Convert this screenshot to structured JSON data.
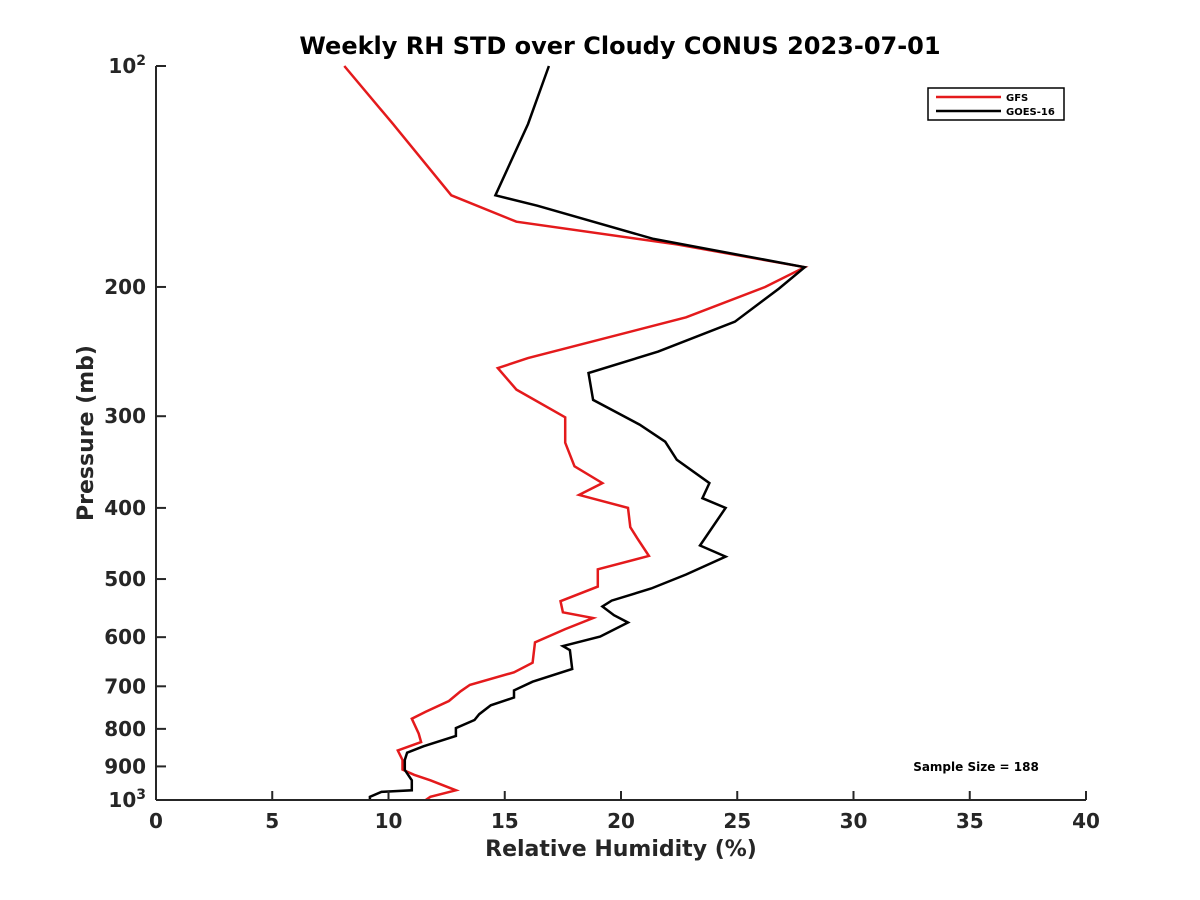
{
  "chart_data": {
    "type": "line",
    "title": "Weekly RH STD over Cloudy CONUS 2023-07-01",
    "xlabel": "Relative Humidity (%)",
    "ylabel": "Pressure (mb)",
    "xlim": [
      0,
      40
    ],
    "ylim": [
      1000,
      100
    ],
    "y_scale": "log",
    "grid": false,
    "legend_position": "top-right",
    "annotation": "Sample Size = 188",
    "x_ticks": [
      0,
      5,
      10,
      15,
      20,
      25,
      30,
      35,
      40
    ],
    "y_ticks": [
      {
        "value": 100,
        "label": "10",
        "sup": "2"
      },
      {
        "value": 200,
        "label": "200",
        "sup": ""
      },
      {
        "value": 300,
        "label": "300",
        "sup": ""
      },
      {
        "value": 400,
        "label": "400",
        "sup": ""
      },
      {
        "value": 500,
        "label": "500",
        "sup": ""
      },
      {
        "value": 600,
        "label": "600",
        "sup": ""
      },
      {
        "value": 700,
        "label": "700",
        "sup": ""
      },
      {
        "value": 800,
        "label": "800",
        "sup": ""
      },
      {
        "value": 900,
        "label": "900",
        "sup": ""
      },
      {
        "value": 1000,
        "label": "10",
        "sup": "3"
      }
    ],
    "series": [
      {
        "name": "GFS",
        "color": "#e41a1c",
        "points": [
          [
            8.1,
            100
          ],
          [
            10.2,
            120
          ],
          [
            12.7,
            150
          ],
          [
            15.5,
            163
          ],
          [
            22.4,
            175
          ],
          [
            27.9,
            188
          ],
          [
            26.2,
            200
          ],
          [
            22.8,
            220
          ],
          [
            16.0,
            250
          ],
          [
            14.7,
            258
          ],
          [
            15.5,
            276
          ],
          [
            17.6,
            301
          ],
          [
            17.6,
            326
          ],
          [
            18.0,
            351
          ],
          [
            19.2,
            370
          ],
          [
            18.2,
            384
          ],
          [
            20.3,
            400
          ],
          [
            20.4,
            425
          ],
          [
            20.7,
            440
          ],
          [
            21.2,
            465
          ],
          [
            19.0,
            485
          ],
          [
            19.0,
            512
          ],
          [
            17.4,
            536
          ],
          [
            17.5,
            555
          ],
          [
            18.8,
            565
          ],
          [
            17.6,
            585
          ],
          [
            16.3,
            610
          ],
          [
            16.2,
            650
          ],
          [
            15.4,
            670
          ],
          [
            13.5,
            697
          ],
          [
            13.1,
            711
          ],
          [
            12.6,
            733
          ],
          [
            11.6,
            758
          ],
          [
            11.0,
            775
          ],
          [
            11.3,
            812
          ],
          [
            11.4,
            834
          ],
          [
            10.4,
            856
          ],
          [
            10.6,
            882
          ],
          [
            10.6,
            909
          ],
          [
            11.1,
            924
          ],
          [
            11.8,
            940
          ],
          [
            12.9,
            970
          ],
          [
            11.8,
            990
          ],
          [
            11.6,
            1000
          ]
        ]
      },
      {
        "name": "GOES-16",
        "color": "#000000",
        "points": [
          [
            16.9,
            100
          ],
          [
            16.0,
            120
          ],
          [
            14.6,
            150
          ],
          [
            16.4,
            155
          ],
          [
            21.4,
            172
          ],
          [
            27.9,
            188
          ],
          [
            26.8,
            201
          ],
          [
            24.9,
            223
          ],
          [
            21.6,
            245
          ],
          [
            18.6,
            262
          ],
          [
            18.8,
            285
          ],
          [
            20.8,
            308
          ],
          [
            21.9,
            325
          ],
          [
            22.4,
            344
          ],
          [
            23.8,
            370
          ],
          [
            23.5,
            388
          ],
          [
            24.5,
            400
          ],
          [
            23.4,
            450
          ],
          [
            24.5,
            466
          ],
          [
            22.8,
            493
          ],
          [
            21.3,
            515
          ],
          [
            19.6,
            535
          ],
          [
            19.2,
            545
          ],
          [
            19.7,
            560
          ],
          [
            20.3,
            573
          ],
          [
            19.1,
            599
          ],
          [
            17.5,
            617
          ],
          [
            17.8,
            625
          ],
          [
            17.9,
            663
          ],
          [
            16.2,
            690
          ],
          [
            15.4,
            709
          ],
          [
            15.4,
            725
          ],
          [
            14.4,
            743
          ],
          [
            13.9,
            764
          ],
          [
            13.7,
            778
          ],
          [
            12.9,
            798
          ],
          [
            12.9,
            818
          ],
          [
            11.5,
            845
          ],
          [
            10.8,
            862
          ],
          [
            10.7,
            882
          ],
          [
            10.7,
            910
          ],
          [
            11.0,
            940
          ],
          [
            11.0,
            970
          ],
          [
            9.7,
            975
          ],
          [
            9.2,
            990
          ],
          [
            9.2,
            1000
          ]
        ]
      }
    ]
  }
}
